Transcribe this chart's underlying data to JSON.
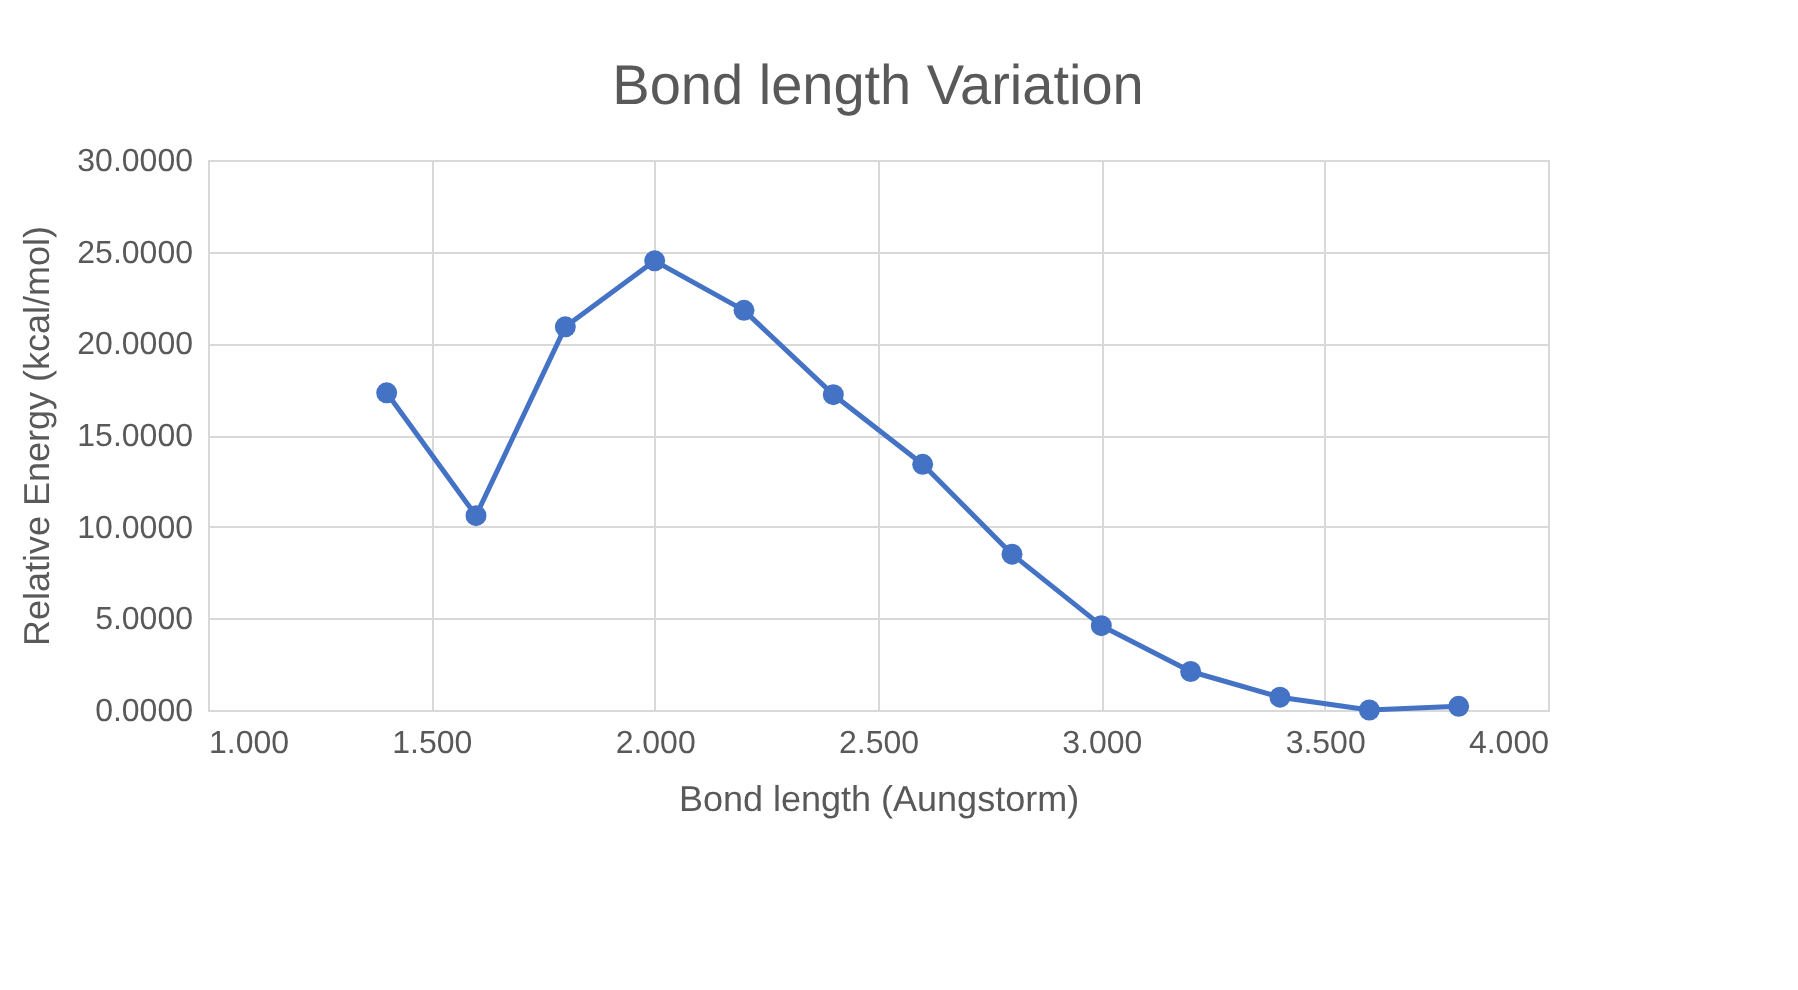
{
  "chart_data": {
    "type": "line",
    "title": "Bond length Variation",
    "xlabel": "Bond length (Aungstorm)",
    "ylabel": "Relative Energy (kcal/mol)",
    "x": [
      1.4,
      1.6,
      1.8,
      2.0,
      2.2,
      2.4,
      2.6,
      2.8,
      3.0,
      3.2,
      3.4,
      3.6,
      3.8
    ],
    "series": [
      {
        "color": "#4472c4",
        "values": [
          17.3,
          10.6,
          20.9,
          24.5,
          21.8,
          17.2,
          13.4,
          8.5,
          4.6,
          2.1,
          0.7,
          0.0,
          0.2
        ]
      }
    ],
    "xlim": [
      1.0,
      4.0
    ],
    "ylim": [
      0,
      30
    ],
    "xticks": [
      {
        "value": 1.0,
        "label": "1.000"
      },
      {
        "value": 1.5,
        "label": "1.500"
      },
      {
        "value": 2.0,
        "label": "2.000"
      },
      {
        "value": 2.5,
        "label": "2.500"
      },
      {
        "value": 3.0,
        "label": "3.000"
      },
      {
        "value": 3.5,
        "label": "3.500"
      },
      {
        "value": 4.0,
        "label": "4.000"
      }
    ],
    "yticks": [
      {
        "value": 0,
        "label": "0.0000"
      },
      {
        "value": 5,
        "label": "5.0000"
      },
      {
        "value": 10,
        "label": "10.0000"
      },
      {
        "value": 15,
        "label": "15.0000"
      },
      {
        "value": 20,
        "label": "20.0000"
      },
      {
        "value": 25,
        "label": "25.0000"
      },
      {
        "value": 30,
        "label": "30.0000"
      }
    ],
    "grid": true,
    "marker": "circle",
    "line_style": "solid"
  }
}
